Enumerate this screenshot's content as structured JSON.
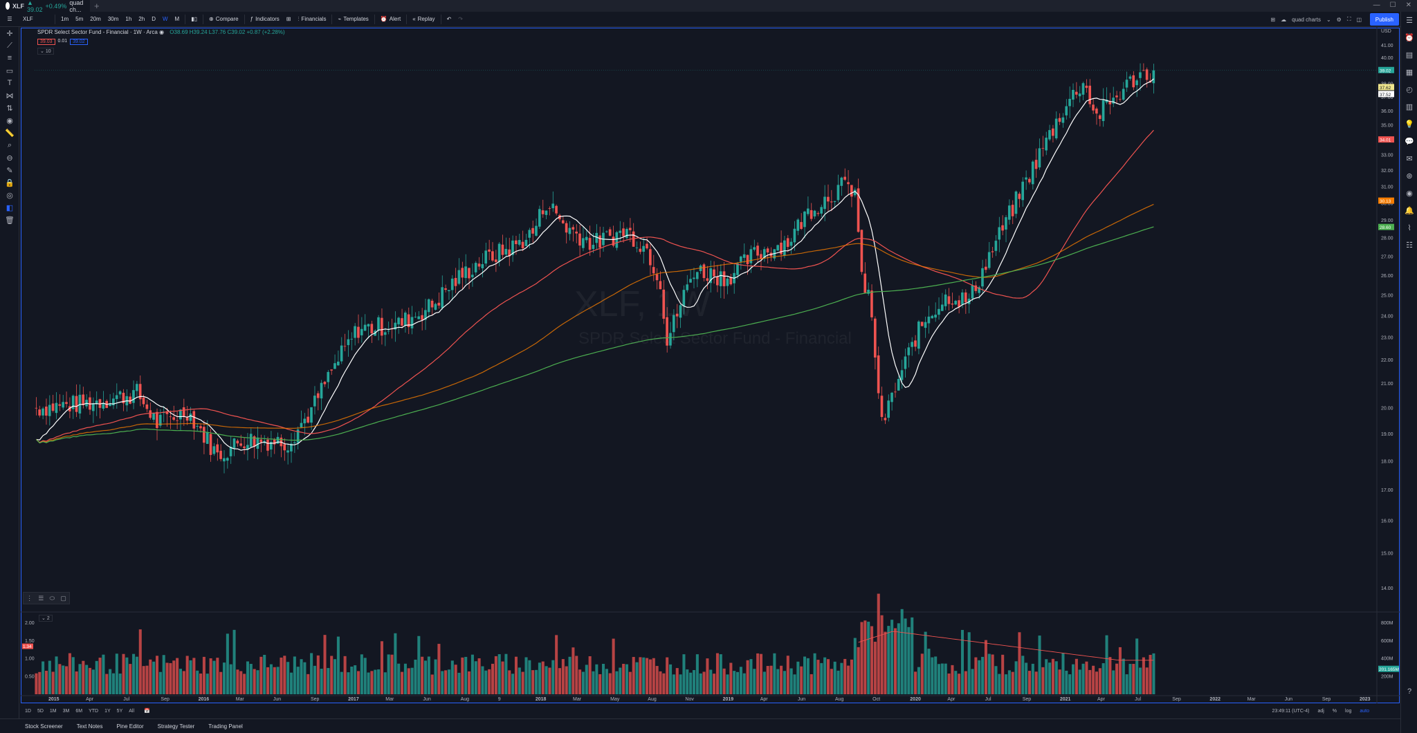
{
  "titlebar": {
    "symbol": "XLF",
    "price": "▲ 39.02",
    "change": "+0.49%",
    "tail": "quad ch..."
  },
  "toolbar": {
    "symbol": "XLF",
    "intervals": [
      "1m",
      "5m",
      "20m",
      "30m",
      "1h",
      "2h",
      "D",
      "W",
      "M"
    ],
    "active_interval": "W",
    "compare": "Compare",
    "indicators": "Indicators",
    "financials": "Financials",
    "templates": "Templates",
    "alert": "Alert",
    "replay": "Replay",
    "layout": "quad charts",
    "publish": "Publish"
  },
  "legend": {
    "title": "SPDR Select Sector Fund - Financial · 1W · Arca",
    "ohlc": "O38.69 H39.24 L37.76 C39.02 +0.87 (+2.28%)",
    "bid": "39.03",
    "spread": "0.01",
    "ask": "39.02",
    "indicator_count": "10"
  },
  "watermark": {
    "symbol": "XLF, 1W",
    "name": "SPDR Select Sector Fund - Financial"
  },
  "volume_label": "2",
  "bottombar": {
    "ranges": [
      "1D",
      "5D",
      "1M",
      "3M",
      "6M",
      "YTD",
      "1Y",
      "5Y",
      "All"
    ],
    "time": "23:49:11 (UTC-4)",
    "options": [
      "adj",
      "%",
      "log",
      "auto"
    ]
  },
  "panels": [
    "Stock Screener",
    "Text Notes",
    "Pine Editor",
    "Strategy Tester",
    "Trading Panel"
  ],
  "chart_data": {
    "type": "candlestick",
    "title": "SPDR Select Sector Fund - Financial · 1W · Arca",
    "ylabel": "USD",
    "ylim": [
      13.3,
      42.0
    ],
    "y_ticks": [
      14,
      15,
      16,
      17,
      18,
      19,
      20,
      21,
      22,
      23,
      24,
      25,
      26,
      27,
      28,
      29,
      30,
      31,
      32,
      33,
      34,
      35,
      36,
      37,
      38,
      39,
      40,
      41
    ],
    "x_ticks": [
      "2015",
      "Apr",
      "Jul",
      "Sep",
      "2016",
      "Mar",
      "Jun",
      "Sep",
      "2017",
      "Mar",
      "Jun",
      "Aug",
      "9",
      "2018",
      "Mar",
      "May",
      "Aug",
      "Nov",
      "2019",
      "Apr",
      "Jun",
      "Aug",
      "Oct",
      "2020",
      "Apr",
      "Jul",
      "Sep",
      "2021",
      "Apr",
      "Jul",
      "Sep",
      "2022",
      "Mar",
      "Jun",
      "Sep",
      "2023"
    ],
    "close_path": [
      [
        0,
        20.0
      ],
      [
        16,
        20.2
      ],
      [
        30,
        20.6
      ],
      [
        36,
        19.4
      ],
      [
        45,
        19.9
      ],
      [
        54,
        18.2
      ],
      [
        62,
        18.8
      ],
      [
        75,
        18.7
      ],
      [
        82,
        19.9
      ],
      [
        88,
        21.5
      ],
      [
        96,
        23.4
      ],
      [
        108,
        23.6
      ],
      [
        118,
        24.5
      ],
      [
        124,
        25.6
      ],
      [
        132,
        26.7
      ],
      [
        142,
        27.5
      ],
      [
        148,
        28.3
      ],
      [
        152,
        30.1
      ],
      [
        158,
        28.6
      ],
      [
        166,
        27.7
      ],
      [
        176,
        28.4
      ],
      [
        182,
        27.4
      ],
      [
        186,
        25.7
      ],
      [
        188,
        22.8
      ],
      [
        196,
        26.3
      ],
      [
        206,
        25.9
      ],
      [
        214,
        27.1
      ],
      [
        224,
        27.8
      ],
      [
        230,
        29.5
      ],
      [
        240,
        31.0
      ],
      [
        244,
        30.8
      ],
      [
        246,
        25.7
      ],
      [
        248,
        25.1
      ],
      [
        252,
        19.3
      ],
      [
        258,
        21.5
      ],
      [
        262,
        23.0
      ],
      [
        266,
        24.1
      ],
      [
        272,
        25.0
      ],
      [
        278,
        24.7
      ],
      [
        284,
        27.0
      ],
      [
        290,
        29.3
      ],
      [
        298,
        32.6
      ],
      [
        306,
        36.1
      ],
      [
        312,
        38.2
      ],
      [
        316,
        35.6
      ],
      [
        322,
        37.1
      ],
      [
        328,
        38.6
      ],
      [
        333,
        38.9
      ]
    ],
    "price_labels": [
      {
        "value": "39.02",
        "color": "#26a69a"
      },
      {
        "value": "37.62",
        "color": "#f0e68c"
      },
      {
        "value": "37.52",
        "color": "#ffffff"
      },
      {
        "value": "34.01",
        "color": "#ef5350"
      },
      {
        "value": "30.13",
        "color": "#f57c00"
      },
      {
        "value": "28.60",
        "color": "#4caf50"
      }
    ],
    "series": [
      {
        "name": "MA 10",
        "color": "#ffffff"
      },
      {
        "name": "MA 50",
        "color": "#ef5350"
      },
      {
        "name": "MA 100",
        "color": "#f57c00"
      },
      {
        "name": "MA 200",
        "color": "#4caf50"
      }
    ],
    "volume_pane": {
      "ylim": [
        0,
        2.2
      ],
      "y_ticks_left": [
        "2.00",
        "1.50",
        "1.00",
        "0.50"
      ],
      "y_ticks_right": [
        "800M",
        "600M",
        "400M",
        "200M"
      ],
      "last_volume": "201.165M",
      "left_marker": "1.34"
    }
  }
}
